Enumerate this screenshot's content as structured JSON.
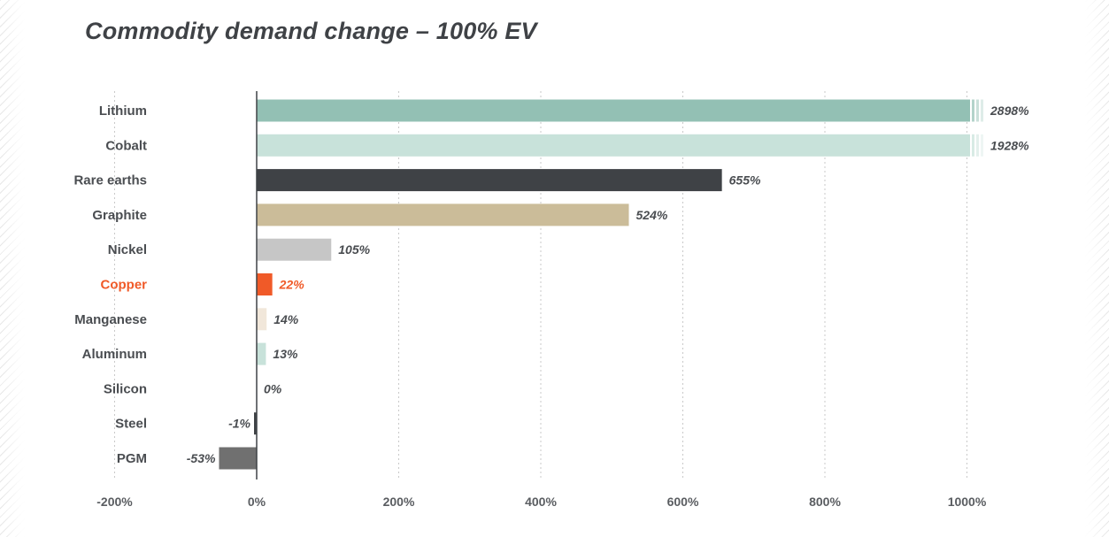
{
  "chart_data": {
    "type": "bar",
    "orientation": "horizontal",
    "title": "Commodity demand change – 100% EV",
    "xlabel": "",
    "ylabel": "",
    "xlim": [
      -200,
      1000
    ],
    "axis_break_above": 1000,
    "grid": true,
    "legend": "none",
    "x_ticks": [
      {
        "value": -200,
        "label": "-200%"
      },
      {
        "value": 0,
        "label": "0%"
      },
      {
        "value": 200,
        "label": "200%"
      },
      {
        "value": 400,
        "label": "400%"
      },
      {
        "value": 600,
        "label": "600%"
      },
      {
        "value": 800,
        "label": "800%"
      },
      {
        "value": 1000,
        "label": "1000%"
      }
    ],
    "categories": [
      "Lithium",
      "Cobalt",
      "Rare earths",
      "Graphite",
      "Nickel",
      "Copper",
      "Manganese",
      "Aluminum",
      "Silicon",
      "Steel",
      "PGM"
    ],
    "values": [
      2898,
      1928,
      655,
      524,
      105,
      22,
      14,
      13,
      0,
      -1,
      -53
    ],
    "value_labels": [
      "2898%",
      "1928%",
      "655%",
      "524%",
      "105%",
      "22%",
      "14%",
      "13%",
      "0%",
      "-1%",
      "-53%"
    ],
    "colors": [
      "#93c0b4",
      "#c8e2da",
      "#3f4246",
      "#cbbc99",
      "#c6c6c6",
      "#f05a28",
      "#f1e7da",
      "#c8e2da",
      "#c8e2da",
      "#3f4246",
      "#707070"
    ],
    "highlight_category": "Copper",
    "highlight_color": "#f05a28"
  }
}
